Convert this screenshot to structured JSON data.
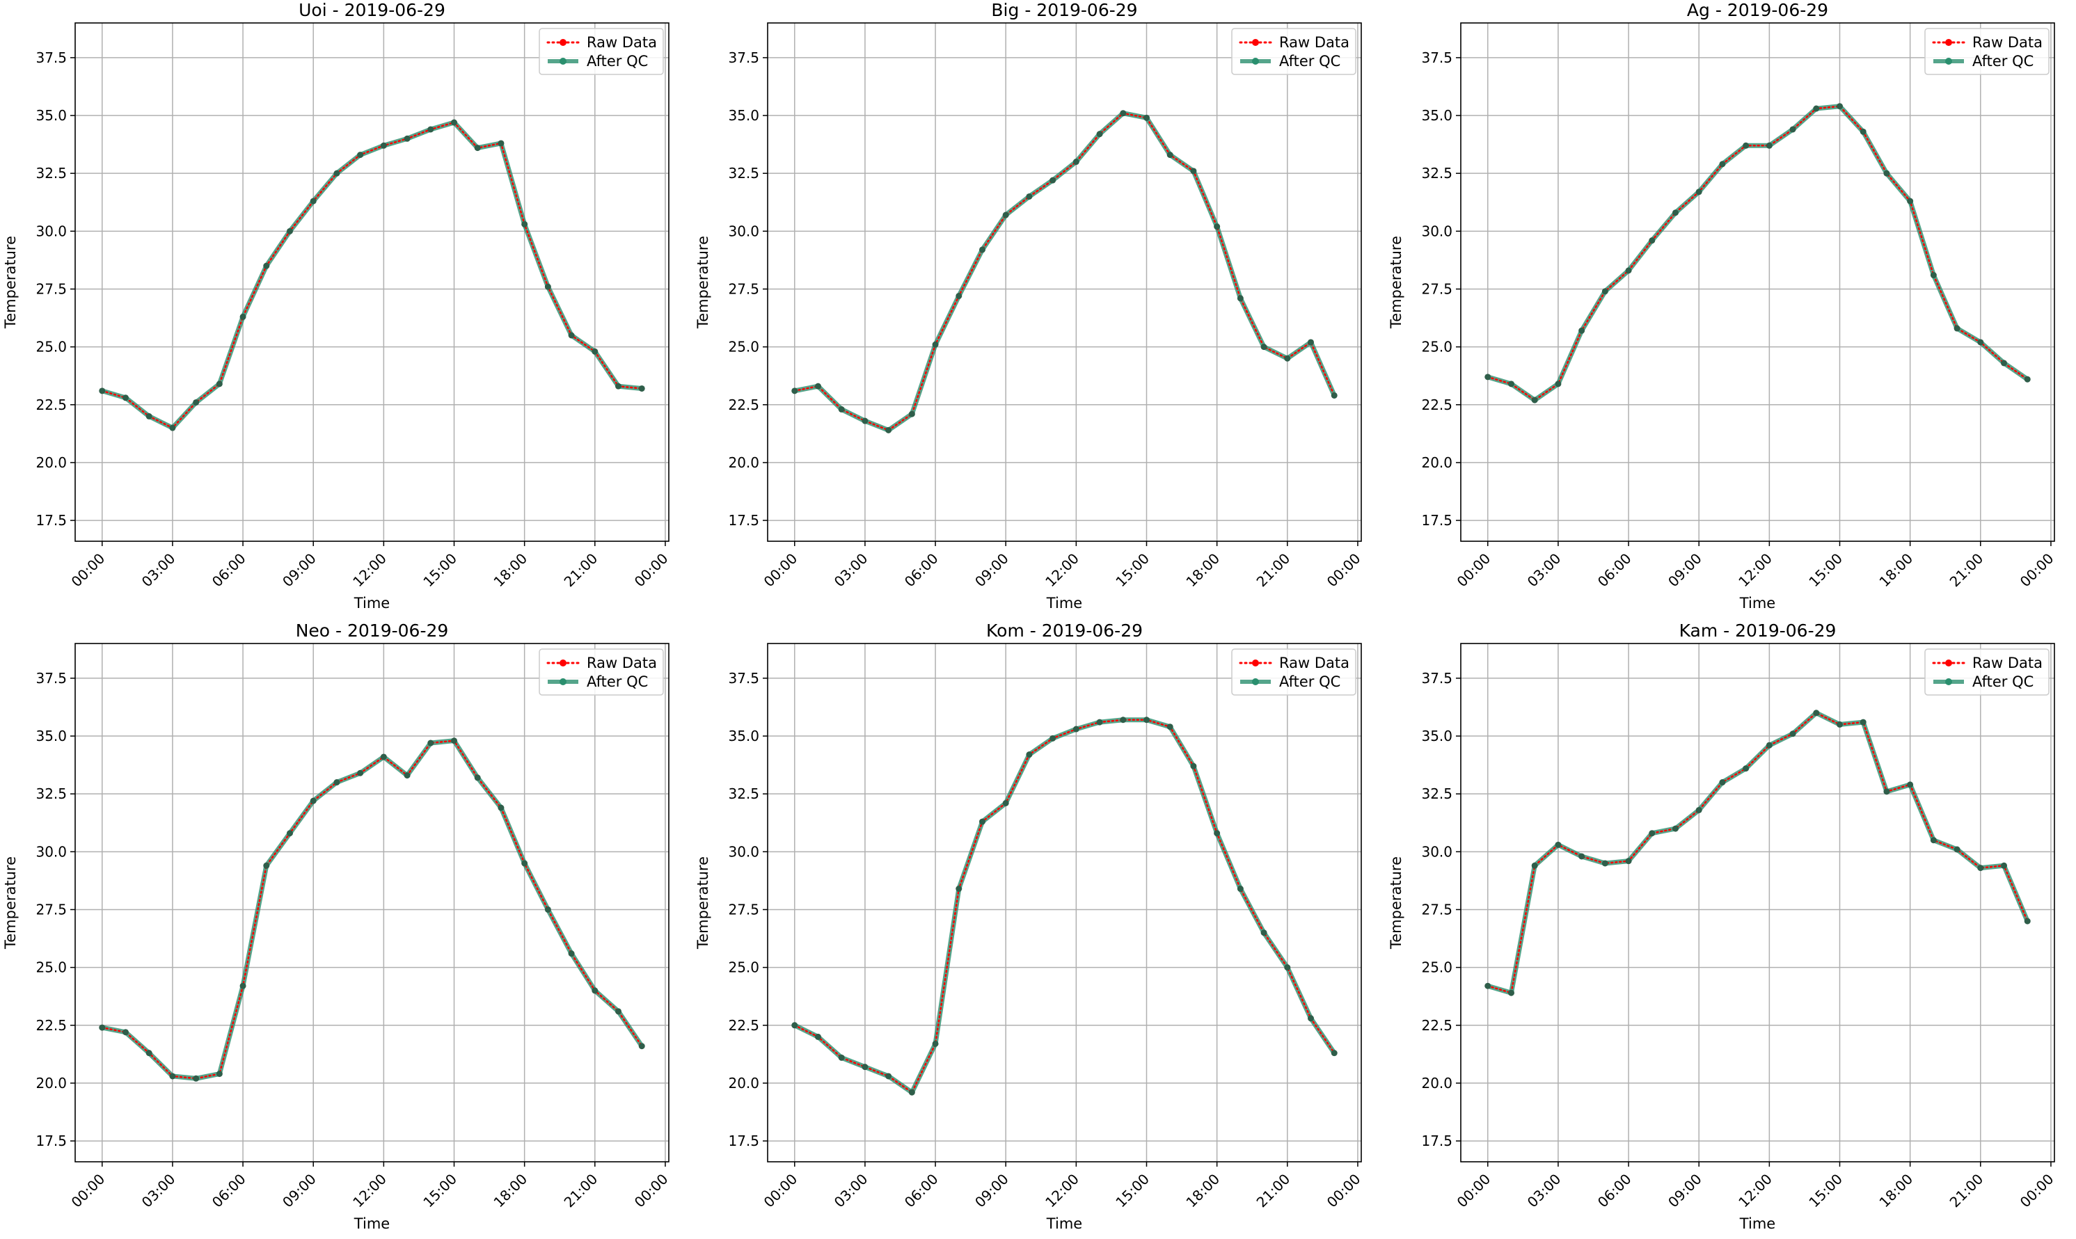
{
  "colors": {
    "raw": "#ff0000",
    "qc": "#2a8f6e",
    "grid": "#b0b0b0",
    "legend_border": "#cccccc"
  },
  "chart_data": [
    {
      "type": "line",
      "title": "Uoi - 2019-06-29",
      "xlabel": "Time",
      "ylabel": "Temperature",
      "ylim": [
        16.6,
        39.0
      ],
      "yticks": [
        "17.5",
        "20.0",
        "22.5",
        "25.0",
        "27.5",
        "30.0",
        "32.5",
        "35.0",
        "37.5"
      ],
      "xticks": [
        "00:00",
        "03:00",
        "06:00",
        "09:00",
        "12:00",
        "15:00",
        "18:00",
        "21:00",
        "00:00"
      ],
      "grid": true,
      "legend": "top-right",
      "series": [
        {
          "name": "Raw Data",
          "style": "dotted"
        },
        {
          "name": "After QC",
          "style": "solid"
        }
      ],
      "x_hours": [
        0,
        1,
        2,
        3,
        4,
        5,
        6,
        7,
        8,
        9,
        10,
        11,
        12,
        13,
        14,
        15,
        16,
        17,
        18,
        19,
        20,
        21,
        22,
        23
      ],
      "values": [
        23.1,
        22.8,
        22.0,
        21.5,
        22.6,
        23.4,
        26.3,
        28.5,
        30.0,
        31.3,
        32.5,
        33.3,
        33.7,
        34.0,
        34.4,
        34.7,
        33.6,
        33.8,
        30.3,
        27.6,
        25.5,
        24.8,
        23.3,
        23.2
      ]
    },
    {
      "type": "line",
      "title": "Big - 2019-06-29",
      "xlabel": "Time",
      "ylabel": "Temperature",
      "ylim": [
        16.6,
        39.0
      ],
      "yticks": [
        "17.5",
        "20.0",
        "22.5",
        "25.0",
        "27.5",
        "30.0",
        "32.5",
        "35.0",
        "37.5"
      ],
      "xticks": [
        "00:00",
        "03:00",
        "06:00",
        "09:00",
        "12:00",
        "15:00",
        "18:00",
        "21:00",
        "00:00"
      ],
      "grid": true,
      "legend": "top-right",
      "series": [
        {
          "name": "Raw Data",
          "style": "dotted"
        },
        {
          "name": "After QC",
          "style": "solid"
        }
      ],
      "x_hours": [
        0,
        1,
        2,
        3,
        4,
        5,
        6,
        7,
        8,
        9,
        10,
        11,
        12,
        13,
        14,
        15,
        16,
        17,
        18,
        19,
        20,
        21,
        22,
        23
      ],
      "values": [
        23.1,
        23.3,
        22.3,
        21.8,
        21.4,
        22.1,
        25.1,
        27.2,
        29.2,
        30.7,
        31.5,
        32.2,
        33.0,
        34.2,
        35.1,
        34.9,
        33.3,
        32.6,
        30.2,
        27.1,
        25.0,
        24.5,
        25.2,
        22.9
      ]
    },
    {
      "type": "line",
      "title": "Ag - 2019-06-29",
      "xlabel": "Time",
      "ylabel": "Temperature",
      "ylim": [
        16.6,
        39.0
      ],
      "yticks": [
        "17.5",
        "20.0",
        "22.5",
        "25.0",
        "27.5",
        "30.0",
        "32.5",
        "35.0",
        "37.5"
      ],
      "xticks": [
        "00:00",
        "03:00",
        "06:00",
        "09:00",
        "12:00",
        "15:00",
        "18:00",
        "21:00",
        "00:00"
      ],
      "grid": true,
      "legend": "top-right",
      "series": [
        {
          "name": "Raw Data",
          "style": "dotted"
        },
        {
          "name": "After QC",
          "style": "solid"
        }
      ],
      "x_hours": [
        0,
        1,
        2,
        3,
        4,
        5,
        6,
        7,
        8,
        9,
        10,
        11,
        12,
        13,
        14,
        15,
        16,
        17,
        18,
        19,
        20,
        21,
        22,
        23
      ],
      "values": [
        23.7,
        23.4,
        22.7,
        23.4,
        25.7,
        27.4,
        28.3,
        29.6,
        30.8,
        31.7,
        32.9,
        33.7,
        33.7,
        34.4,
        35.3,
        35.4,
        34.3,
        32.5,
        31.3,
        28.1,
        25.8,
        25.2,
        24.3,
        23.6
      ]
    },
    {
      "type": "line",
      "title": "Neo - 2019-06-29",
      "xlabel": "Time",
      "ylabel": "Temperature",
      "ylim": [
        16.6,
        39.0
      ],
      "yticks": [
        "17.5",
        "20.0",
        "22.5",
        "25.0",
        "27.5",
        "30.0",
        "32.5",
        "35.0",
        "37.5"
      ],
      "xticks": [
        "00:00",
        "03:00",
        "06:00",
        "09:00",
        "12:00",
        "15:00",
        "18:00",
        "21:00",
        "00:00"
      ],
      "grid": true,
      "legend": "top-right",
      "series": [
        {
          "name": "Raw Data",
          "style": "dotted"
        },
        {
          "name": "After QC",
          "style": "solid"
        }
      ],
      "x_hours": [
        0,
        1,
        2,
        3,
        4,
        5,
        6,
        7,
        8,
        9,
        10,
        11,
        12,
        13,
        14,
        15,
        16,
        17,
        18,
        19,
        20,
        21,
        22,
        23
      ],
      "values": [
        22.4,
        22.2,
        21.3,
        20.3,
        20.2,
        20.4,
        24.2,
        29.4,
        30.8,
        32.2,
        33.0,
        33.4,
        34.1,
        33.3,
        34.7,
        34.8,
        33.2,
        31.9,
        29.5,
        27.5,
        25.6,
        24.0,
        23.1,
        21.6
      ]
    },
    {
      "type": "line",
      "title": "Kom - 2019-06-29",
      "xlabel": "Time",
      "ylabel": "Temperature",
      "ylim": [
        16.6,
        39.0
      ],
      "yticks": [
        "17.5",
        "20.0",
        "22.5",
        "25.0",
        "27.5",
        "30.0",
        "32.5",
        "35.0",
        "37.5"
      ],
      "xticks": [
        "00:00",
        "03:00",
        "06:00",
        "09:00",
        "12:00",
        "15:00",
        "18:00",
        "21:00",
        "00:00"
      ],
      "grid": true,
      "legend": "top-right",
      "series": [
        {
          "name": "Raw Data",
          "style": "dotted"
        },
        {
          "name": "After QC",
          "style": "solid"
        }
      ],
      "x_hours": [
        0,
        1,
        2,
        3,
        4,
        5,
        6,
        7,
        8,
        9,
        10,
        11,
        12,
        13,
        14,
        15,
        16,
        17,
        18,
        19,
        20,
        21,
        22,
        23
      ],
      "values": [
        22.5,
        22.0,
        21.1,
        20.7,
        20.3,
        19.6,
        21.7,
        28.4,
        31.3,
        32.1,
        34.2,
        34.9,
        35.3,
        35.6,
        35.7,
        35.7,
        35.4,
        33.7,
        30.8,
        28.4,
        26.5,
        25.0,
        22.8,
        21.3
      ]
    },
    {
      "type": "line",
      "title": "Kam - 2019-06-29",
      "xlabel": "Time",
      "ylabel": "Temperature",
      "ylim": [
        16.6,
        39.0
      ],
      "yticks": [
        "17.5",
        "20.0",
        "22.5",
        "25.0",
        "27.5",
        "30.0",
        "32.5",
        "35.0",
        "37.5"
      ],
      "xticks": [
        "00:00",
        "03:00",
        "06:00",
        "09:00",
        "12:00",
        "15:00",
        "18:00",
        "21:00",
        "00:00"
      ],
      "grid": true,
      "legend": "top-right",
      "series": [
        {
          "name": "Raw Data",
          "style": "dotted"
        },
        {
          "name": "After QC",
          "style": "solid"
        }
      ],
      "x_hours": [
        0,
        1,
        2,
        3,
        4,
        5,
        6,
        7,
        8,
        9,
        10,
        11,
        12,
        13,
        14,
        15,
        16,
        17,
        18,
        19,
        20,
        21,
        22,
        23
      ],
      "values": [
        24.2,
        23.9,
        29.4,
        30.3,
        29.8,
        29.5,
        29.6,
        30.8,
        31.0,
        31.8,
        33.0,
        33.6,
        34.6,
        35.1,
        36.0,
        35.5,
        35.6,
        32.6,
        32.9,
        30.5,
        30.1,
        29.3,
        29.4,
        27.0
      ]
    }
  ]
}
